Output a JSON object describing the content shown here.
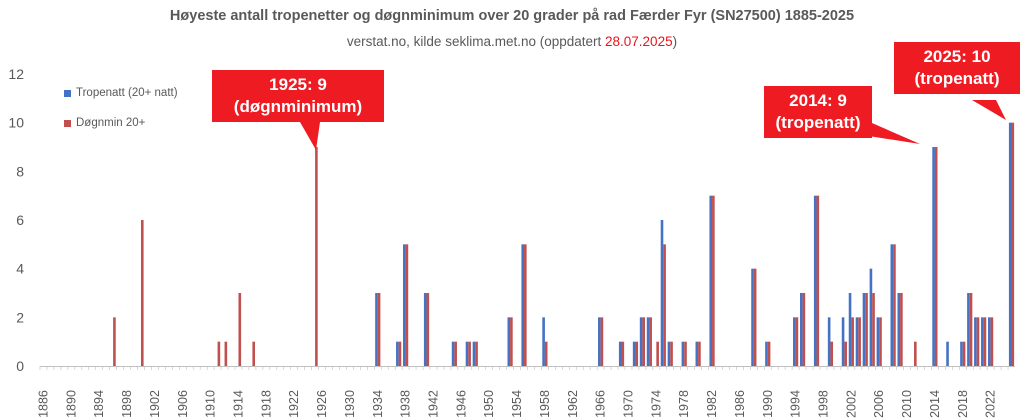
{
  "chart_data": {
    "type": "bar",
    "title": "Høyeste antall tropenetter og døgnminimum over 20 grader på rad Færder Fyr (SN27500) 1885-2025",
    "subtitle_prefix": "verstat.no, kilde seklima.met.no (oppdatert ",
    "subtitle_date": "28.07.2025",
    "subtitle_suffix": ")",
    "ylim": [
      0,
      12
    ],
    "yticks": [
      0,
      2,
      4,
      6,
      8,
      10,
      12
    ],
    "xlim": [
      1886,
      2025
    ],
    "xticks": [
      1886,
      1890,
      1894,
      1898,
      1902,
      1906,
      1910,
      1914,
      1918,
      1922,
      1926,
      1930,
      1934,
      1938,
      1942,
      1946,
      1950,
      1954,
      1958,
      1962,
      1966,
      1970,
      1974,
      1978,
      1982,
      1986,
      1990,
      1994,
      1998,
      2002,
      2006,
      2010,
      2014,
      2018,
      2022
    ],
    "legend_position": "top-left",
    "colors": {
      "tropenatt": "#4472c4",
      "dognmin": "#c0504d",
      "callout": "#ee1b23",
      "axis_text": "#595959"
    },
    "series": [
      {
        "name": "Tropenatt (20+ natt)",
        "points": [
          [
            1934,
            3
          ],
          [
            1937,
            1
          ],
          [
            1938,
            5
          ],
          [
            1941,
            3
          ],
          [
            1945,
            1
          ],
          [
            1947,
            1
          ],
          [
            1948,
            1
          ],
          [
            1953,
            2
          ],
          [
            1955,
            5
          ],
          [
            1958,
            2
          ],
          [
            1966,
            2
          ],
          [
            1969,
            1
          ],
          [
            1971,
            1
          ],
          [
            1972,
            2
          ],
          [
            1973,
            2
          ],
          [
            1975,
            6
          ],
          [
            1976,
            1
          ],
          [
            1978,
            1
          ],
          [
            1980,
            1
          ],
          [
            1982,
            7
          ],
          [
            1988,
            4
          ],
          [
            1990,
            1
          ],
          [
            1994,
            2
          ],
          [
            1995,
            3
          ],
          [
            1997,
            7
          ],
          [
            1999,
            2
          ],
          [
            2001,
            2
          ],
          [
            2002,
            3
          ],
          [
            2003,
            2
          ],
          [
            2004,
            3
          ],
          [
            2005,
            4
          ],
          [
            2006,
            2
          ],
          [
            2008,
            5
          ],
          [
            2009,
            3
          ],
          [
            2014,
            9
          ],
          [
            2016,
            1
          ],
          [
            2018,
            1
          ],
          [
            2019,
            3
          ],
          [
            2020,
            2
          ],
          [
            2021,
            2
          ],
          [
            2022,
            2
          ],
          [
            2025,
            10
          ]
        ]
      },
      {
        "name": "Døgnmin 20+",
        "points": [
          [
            1896,
            2
          ],
          [
            1900,
            6
          ],
          [
            1911,
            1
          ],
          [
            1912,
            1
          ],
          [
            1914,
            3
          ],
          [
            1916,
            1
          ],
          [
            1925,
            9
          ],
          [
            1934,
            3
          ],
          [
            1937,
            1
          ],
          [
            1938,
            5
          ],
          [
            1941,
            3
          ],
          [
            1945,
            1
          ],
          [
            1947,
            1
          ],
          [
            1948,
            1
          ],
          [
            1953,
            2
          ],
          [
            1955,
            5
          ],
          [
            1958,
            1
          ],
          [
            1966,
            2
          ],
          [
            1969,
            1
          ],
          [
            1971,
            1
          ],
          [
            1972,
            2
          ],
          [
            1973,
            2
          ],
          [
            1974,
            1
          ],
          [
            1975,
            5
          ],
          [
            1976,
            1
          ],
          [
            1978,
            1
          ],
          [
            1980,
            1
          ],
          [
            1982,
            7
          ],
          [
            1988,
            4
          ],
          [
            1990,
            1
          ],
          [
            1994,
            2
          ],
          [
            1995,
            3
          ],
          [
            1997,
            7
          ],
          [
            1999,
            1
          ],
          [
            2001,
            1
          ],
          [
            2002,
            2
          ],
          [
            2003,
            2
          ],
          [
            2004,
            3
          ],
          [
            2005,
            3
          ],
          [
            2006,
            2
          ],
          [
            2008,
            5
          ],
          [
            2009,
            3
          ],
          [
            2011,
            1
          ],
          [
            2014,
            9
          ],
          [
            2018,
            1
          ],
          [
            2019,
            3
          ],
          [
            2020,
            2
          ],
          [
            2021,
            2
          ],
          [
            2022,
            2
          ],
          [
            2025,
            10
          ]
        ]
      }
    ],
    "annotations": [
      {
        "line1": "1925: 9",
        "line2": "(døgnminimum)",
        "year": 1925
      },
      {
        "line1": "2014: 9",
        "line2": "(tropenatt)",
        "year": 2014
      },
      {
        "line1": "2025: 10",
        "line2": "(tropenatt)",
        "year": 2025
      }
    ]
  }
}
